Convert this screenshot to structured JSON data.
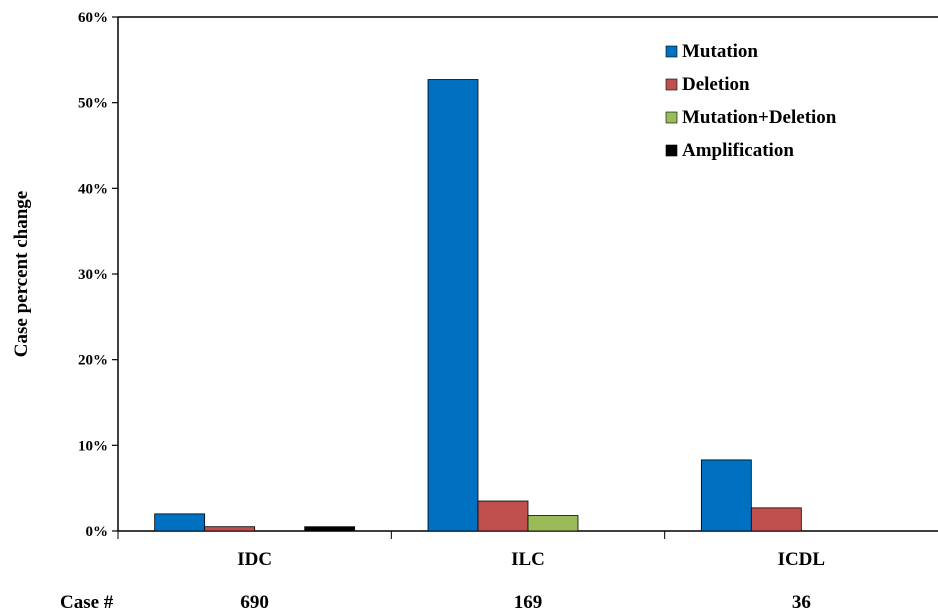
{
  "chart_data": {
    "type": "bar",
    "ylabel": "Case percent  change",
    "ylim": [
      0,
      60
    ],
    "yticks": [
      0,
      10,
      20,
      30,
      40,
      50,
      60
    ],
    "ytick_labels": [
      "0%",
      "10%",
      "20%",
      "30%",
      "40%",
      "50%",
      "60%"
    ],
    "categories": [
      "IDC",
      "ILC",
      "ICDL"
    ],
    "series": [
      {
        "name": "Mutation",
        "color": "#0070C0",
        "values": [
          2.0,
          52.7,
          8.3
        ]
      },
      {
        "name": "Deletion",
        "color": "#C0504D",
        "values": [
          0.5,
          3.5,
          2.7
        ]
      },
      {
        "name": "Mutation+Deletion",
        "color": "#9BBB59",
        "values": [
          0.0,
          1.8,
          0.0
        ]
      },
      {
        "name": "Amplification",
        "color": "#000000",
        "values": [
          0.5,
          0.0,
          0.0
        ]
      }
    ],
    "legend_position": "top-right",
    "grid": false,
    "case_counts": {
      "label": "Case #",
      "values": [
        "690",
        "169",
        "36"
      ]
    }
  }
}
